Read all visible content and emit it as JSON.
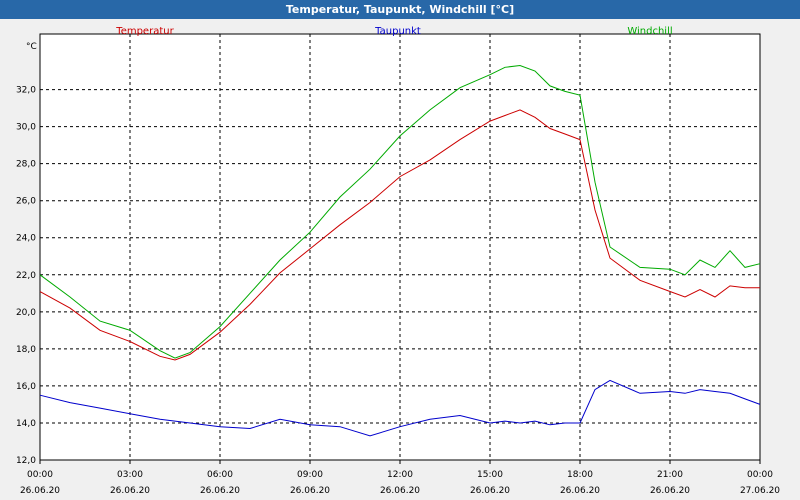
{
  "window": {
    "title": "Temperatur, Taupunkt, Windchill [°C]"
  },
  "chart_data": {
    "type": "line",
    "title": "Temperatur, Taupunkt, Windchill [°C]",
    "ylabel": "°C",
    "xlabel": "",
    "ylim": [
      12,
      35
    ],
    "xlim": [
      0,
      24
    ],
    "grid": true,
    "legend_position": "top",
    "y_ticks": [
      "12,0",
      "14,0",
      "16,0",
      "18,0",
      "20,0",
      "22,0",
      "24,0",
      "26,0",
      "28,0",
      "30,0",
      "32,0"
    ],
    "x_ticks": [
      {
        "time": "00:00",
        "date": "26.06.20"
      },
      {
        "time": "03:00",
        "date": "26.06.20"
      },
      {
        "time": "06:00",
        "date": "26.06.20"
      },
      {
        "time": "09:00",
        "date": "26.06.20"
      },
      {
        "time": "12:00",
        "date": "26.06.20"
      },
      {
        "time": "15:00",
        "date": "26.06.20"
      },
      {
        "time": "18:00",
        "date": "26.06.20"
      },
      {
        "time": "21:00",
        "date": "26.06.20"
      },
      {
        "time": "00:00",
        "date": "27.06.20"
      }
    ],
    "x": [
      0,
      1,
      2,
      3,
      4,
      4.5,
      5,
      6,
      7,
      8,
      9,
      10,
      11,
      12,
      13,
      14,
      15,
      15.5,
      16,
      16.5,
      17,
      17.5,
      18,
      18.5,
      19,
      20,
      21,
      21.5,
      22,
      22.5,
      23,
      23.5,
      24
    ],
    "series": [
      {
        "name": "Temperatur",
        "color": "#cc0000",
        "values": [
          21.1,
          20.2,
          19.0,
          18.4,
          17.6,
          17.4,
          17.7,
          18.9,
          20.4,
          22.1,
          23.4,
          24.7,
          25.9,
          27.3,
          28.2,
          29.3,
          30.3,
          30.6,
          30.9,
          30.5,
          29.9,
          29.6,
          29.3,
          25.5,
          22.9,
          21.7,
          21.1,
          20.8,
          21.2,
          20.8,
          21.4,
          21.3,
          21.3
        ]
      },
      {
        "name": "Taupunkt",
        "color": "#0000cc",
        "values": [
          15.5,
          15.1,
          14.8,
          14.5,
          14.2,
          14.1,
          14.0,
          13.8,
          13.7,
          14.2,
          13.9,
          13.8,
          13.3,
          13.8,
          14.2,
          14.4,
          14.0,
          14.1,
          14.0,
          14.1,
          13.9,
          14.0,
          14.0,
          15.8,
          16.3,
          15.6,
          15.7,
          15.6,
          15.8,
          15.7,
          15.6,
          15.3,
          15.0
        ]
      },
      {
        "name": "Windchill",
        "color": "#00aa00",
        "values": [
          22.0,
          20.8,
          19.5,
          19.0,
          17.9,
          17.5,
          17.8,
          19.2,
          21.0,
          22.8,
          24.3,
          26.2,
          27.7,
          29.5,
          30.9,
          32.1,
          32.8,
          33.2,
          33.3,
          33.0,
          32.2,
          31.9,
          31.7,
          27.0,
          23.5,
          22.4,
          22.3,
          22.0,
          22.8,
          22.4,
          23.3,
          22.4,
          22.6
        ]
      }
    ]
  }
}
